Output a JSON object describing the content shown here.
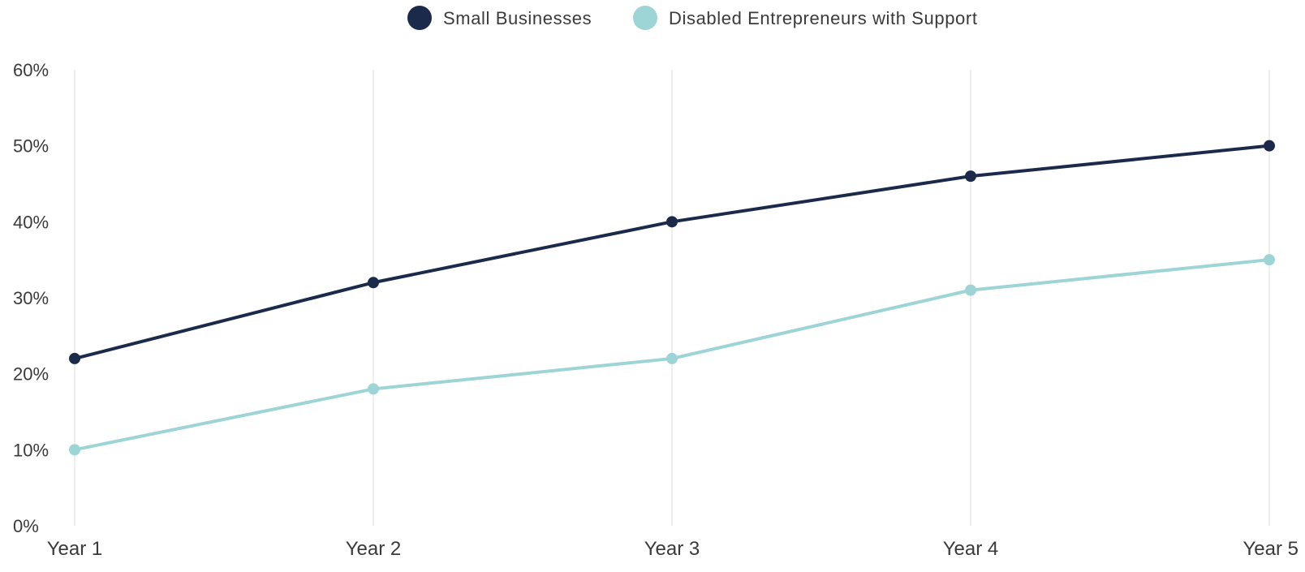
{
  "chart_data": {
    "type": "line",
    "categories": [
      "Year 1",
      "Year 2",
      "Year 3",
      "Year 4",
      "Year 5"
    ],
    "series": [
      {
        "name": "Small Businesses",
        "values": [
          22,
          32,
          40,
          46,
          50
        ],
        "color": "#1b2a4a"
      },
      {
        "name": "Disabled Entrepreneurs with Support",
        "values": [
          10,
          18,
          22,
          31,
          35
        ],
        "color": "#9dd4d6"
      }
    ],
    "y_ticks": [
      "0%",
      "10%",
      "20%",
      "30%",
      "40%",
      "50%",
      "60%"
    ],
    "ylim": [
      0,
      60
    ],
    "y_unit": "%",
    "grid": "vertical",
    "legend_position": "top-center"
  }
}
